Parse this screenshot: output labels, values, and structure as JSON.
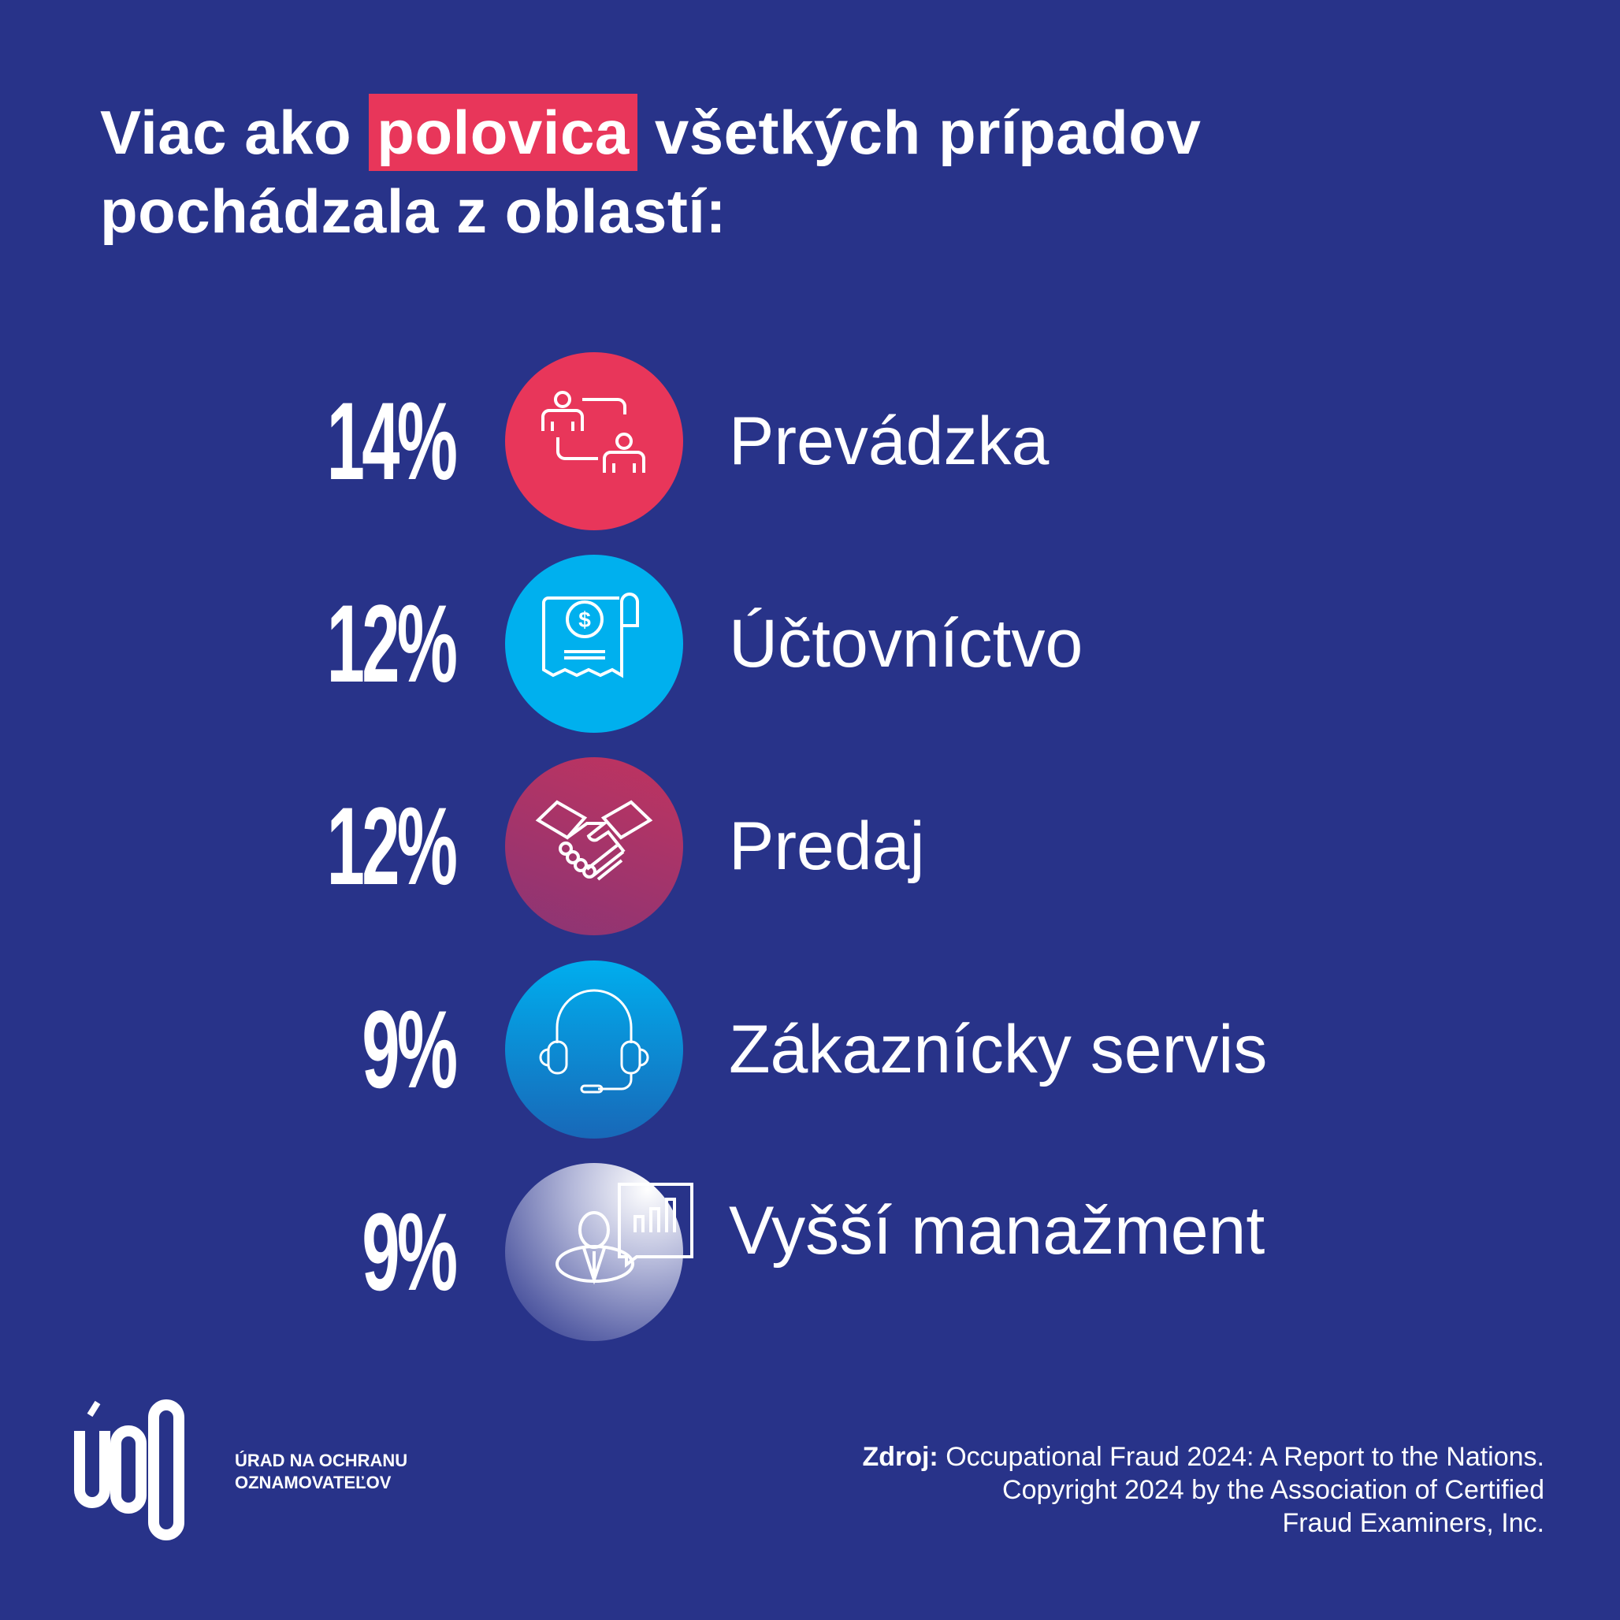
{
  "title": {
    "before": "Viac ako ",
    "highlight": "polovica",
    "after": " všetkých prípadov",
    "line2": "pochádzala z oblastí:"
  },
  "items": [
    {
      "percent": "14%",
      "label": "Prevádzka",
      "icon": "people-exchange-icon",
      "color": "#e8365a"
    },
    {
      "percent": "12%",
      "label": "Účtovníctvo",
      "icon": "receipt-dollar-icon",
      "color": "#00b0ee"
    },
    {
      "percent": "12%",
      "label": "Predaj",
      "icon": "handshake-icon",
      "color": "#b8336a"
    },
    {
      "percent": "9%",
      "label": "Zákaznícky servis",
      "icon": "headset-icon",
      "color": "#0a8fd8"
    },
    {
      "percent": "9%",
      "label": "Vyšší manažment",
      "icon": "manager-chart-icon",
      "color": "#c5c8e0"
    }
  ],
  "logo": {
    "mark": "ÚOO",
    "line1": "ÚRAD NA OCHRANU",
    "line2": "OZNAMOVATEĽOV"
  },
  "source": {
    "prefix": "Zdroj:",
    "line1": " Occupational Fraud 2024: A Report to the Nations.",
    "line2": "Copyright 2024 by the Association of Certified",
    "line3": "Fraud Examiners, Inc."
  },
  "colors": {
    "background": "#283389",
    "accent": "#e8365a"
  }
}
